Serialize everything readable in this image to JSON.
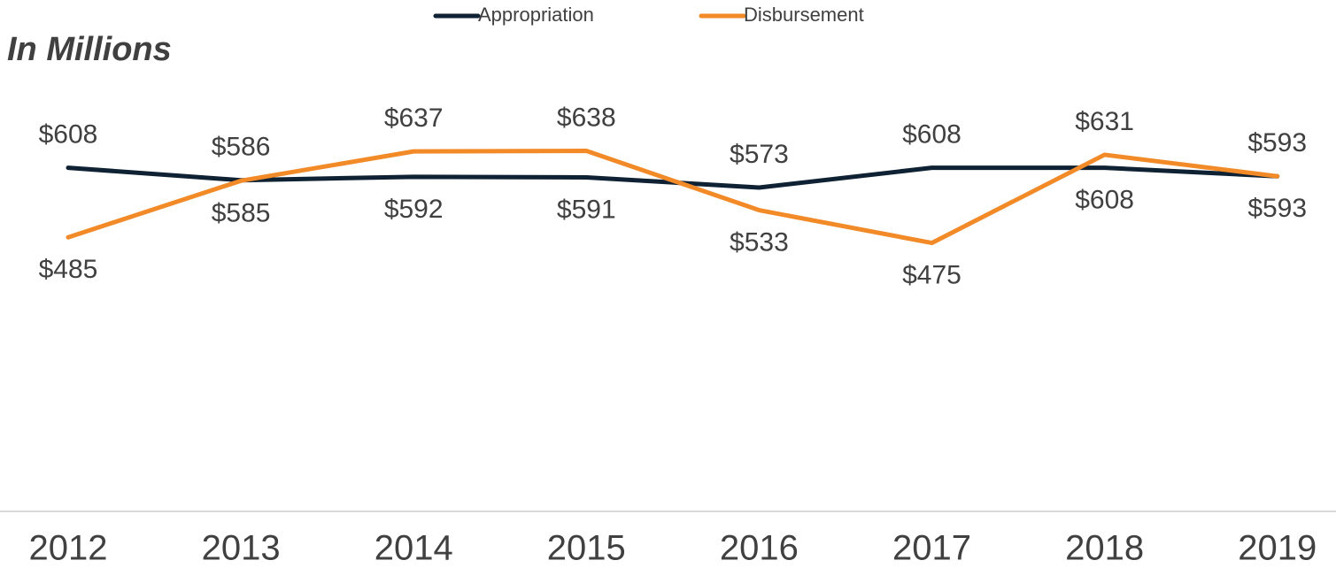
{
  "chart_data": {
    "type": "line",
    "title": "In Millions",
    "categories": [
      "2012",
      "2013",
      "2014",
      "2015",
      "2016",
      "2017",
      "2018",
      "2019"
    ],
    "series": [
      {
        "name": "Appropriation",
        "color": "#0f2233",
        "values": [
          608,
          586,
          592,
          591,
          573,
          608,
          608,
          593
        ],
        "value_labels": [
          "$608",
          "$586",
          "$592",
          "$591",
          "$573",
          "$608",
          "$608",
          "$593"
        ]
      },
      {
        "name": "Disbursement",
        "color": "#f28a28",
        "values": [
          485,
          585,
          637,
          638,
          533,
          475,
          631,
          593
        ],
        "value_labels": [
          "$485",
          "$585",
          "$637",
          "$638",
          "$533",
          "$475",
          "$631",
          "$593"
        ]
      }
    ],
    "ylim": [
      0,
      800
    ],
    "legend": "top"
  }
}
